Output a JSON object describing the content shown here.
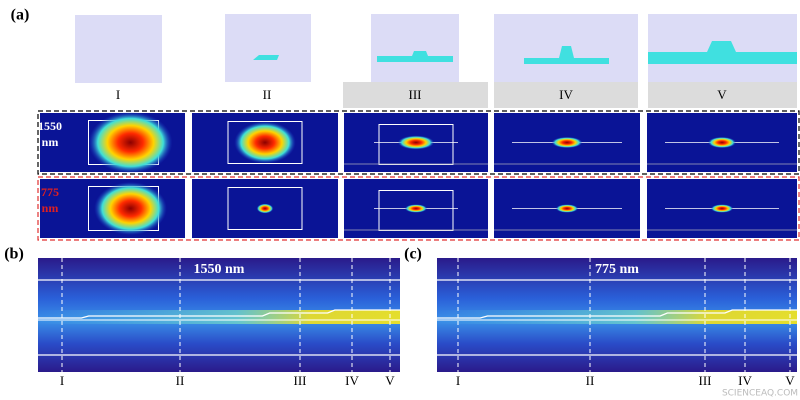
{
  "figure": {
    "a": {
      "label": "(a)",
      "stages": [
        "I",
        "II",
        "III",
        "IV",
        "V"
      ],
      "rows": [
        {
          "wavelength": "1550",
          "unit": "nm"
        },
        {
          "wavelength": "775",
          "unit": "nm"
        }
      ]
    },
    "b": {
      "label": "(b)",
      "title": "1550 nm",
      "markers": [
        "I",
        "II",
        "III",
        "IV",
        "V"
      ]
    },
    "c": {
      "label": "(c)",
      "title": "775 nm",
      "markers": [
        "I",
        "II",
        "III",
        "IV",
        "V"
      ]
    },
    "watermark": "SCIENCEAQ.COM"
  }
}
